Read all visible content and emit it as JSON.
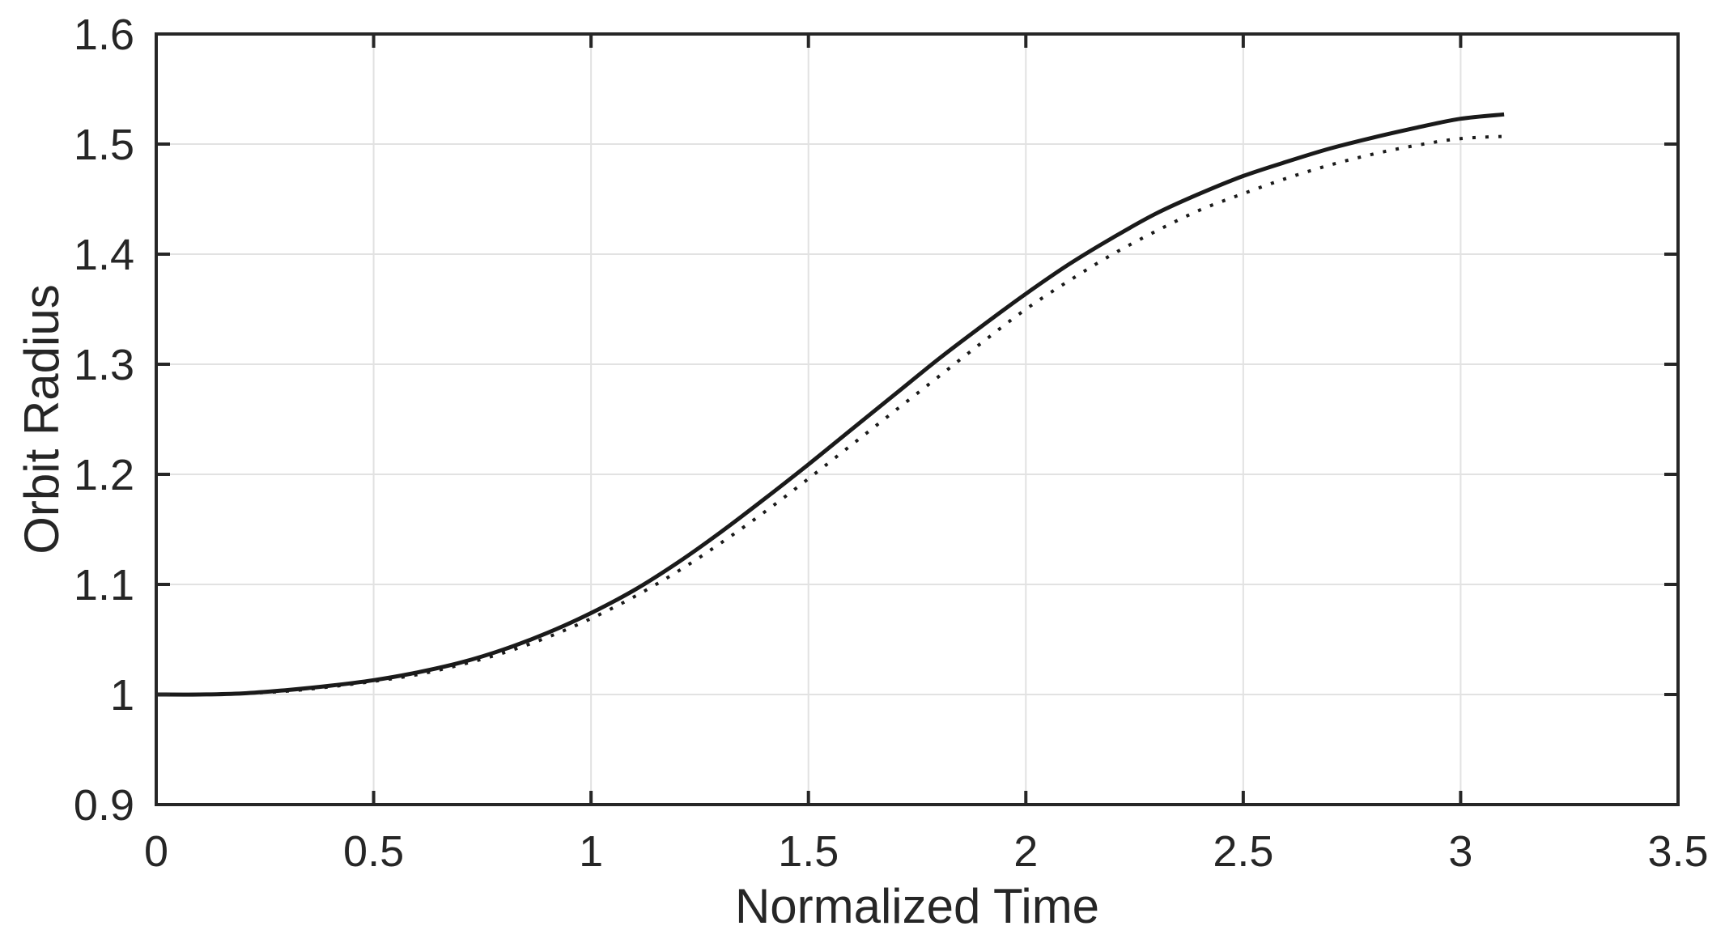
{
  "figure": {
    "background": "#ffffff",
    "axis_color": "#262626",
    "grid_color": "#e2e2e2",
    "text_color": "#262626",
    "line_color": "#1a1a1a"
  },
  "chart_data": {
    "type": "line",
    "title": "",
    "xlabel": "Normalized Time",
    "ylabel": "Orbit Radius",
    "xlim": [
      0,
      3.5
    ],
    "ylim": [
      0.9,
      1.6
    ],
    "xticks": [
      "0",
      "0.5",
      "1",
      "1.5",
      "2",
      "2.5",
      "3",
      "3.5"
    ],
    "yticks": [
      "0.9",
      "1",
      "1.1",
      "1.2",
      "1.3",
      "1.4",
      "1.5",
      "1.6"
    ],
    "grid": true,
    "legend": "none",
    "x": [
      0.0,
      0.1,
      0.2,
      0.3,
      0.4,
      0.5,
      0.6,
      0.7,
      0.8,
      0.9,
      1.0,
      1.1,
      1.2,
      1.3,
      1.4,
      1.5,
      1.6,
      1.7,
      1.8,
      1.9,
      2.0,
      2.1,
      2.2,
      2.3,
      2.4,
      2.5,
      2.6,
      2.7,
      2.8,
      2.9,
      3.0,
      3.1
    ],
    "series": [
      {
        "name": "solid-curve",
        "line_style": "solid",
        "values": [
          1.0,
          1.0,
          1.001,
          1.004,
          1.008,
          1.013,
          1.02,
          1.029,
          1.041,
          1.056,
          1.074,
          1.095,
          1.12,
          1.148,
          1.178,
          1.209,
          1.241,
          1.273,
          1.305,
          1.335,
          1.364,
          1.391,
          1.415,
          1.437,
          1.455,
          1.471,
          1.484,
          1.496,
          1.506,
          1.515,
          1.523,
          1.527
        ]
      },
      {
        "name": "dotted-curve",
        "line_style": "dotted",
        "values": [
          1.0,
          1.0,
          1.001,
          1.003,
          1.007,
          1.012,
          1.018,
          1.027,
          1.038,
          1.052,
          1.069,
          1.089,
          1.112,
          1.138,
          1.166,
          1.196,
          1.227,
          1.258,
          1.289,
          1.32,
          1.35,
          1.376,
          1.4,
          1.421,
          1.44,
          1.455,
          1.469,
          1.481,
          1.491,
          1.499,
          1.505,
          1.507
        ]
      }
    ]
  }
}
